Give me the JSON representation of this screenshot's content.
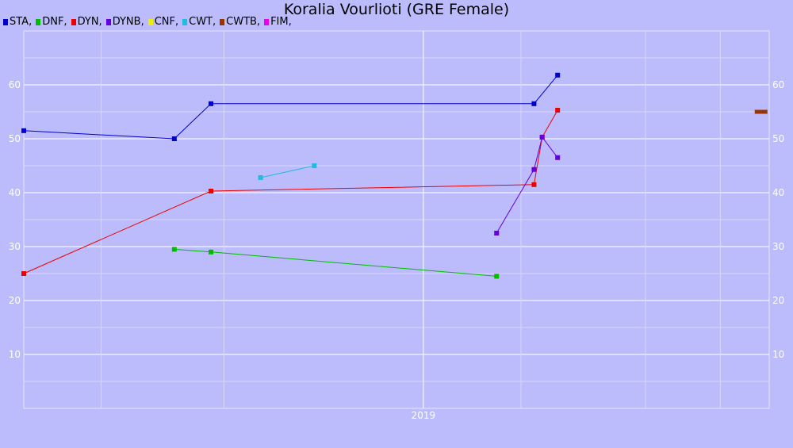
{
  "chart_data": {
    "type": "line",
    "title": "Koralia Vourlioti (GRE Female)",
    "legend_suffix": ",",
    "legend_placement": "top-left",
    "grid": true,
    "ylim": [
      0,
      70
    ],
    "y_ticks": [
      10,
      20,
      30,
      40,
      50,
      60
    ],
    "y_tick_labels": [
      "10",
      "20",
      "30",
      "40",
      "50",
      "60"
    ],
    "xlim": [
      "2017-08-28",
      "2020-03-01"
    ],
    "x_ticks": [
      {
        "value": "2019-01-01",
        "label": "2019"
      }
    ],
    "x_minor_gridlines": [
      "2017-12-01",
      "2018-05-01",
      "2019-01-01",
      "2019-05-01",
      "2019-10-01",
      "2020-01-01"
    ],
    "series": [
      {
        "name": "STA",
        "color": "#0000cc",
        "points": [
          {
            "x": "2017-08-28",
            "y": 51.5
          },
          {
            "x": "2018-03-01",
            "y": 50.0
          },
          {
            "x": "2018-04-15",
            "y": 56.5
          },
          {
            "x": "2019-05-17",
            "y": 56.5
          },
          {
            "x": "2019-06-15",
            "y": 61.8
          }
        ]
      },
      {
        "name": "DNF",
        "color": "#00bb00",
        "points": [
          {
            "x": "2018-03-01",
            "y": 29.5
          },
          {
            "x": "2018-04-15",
            "y": 29.0
          },
          {
            "x": "2019-04-01",
            "y": 24.5
          }
        ]
      },
      {
        "name": "DYN",
        "color": "#ee0000",
        "points": [
          {
            "x": "2017-08-28",
            "y": 25.0
          },
          {
            "x": "2018-04-15",
            "y": 40.3
          },
          {
            "x": "2019-05-17",
            "y": 41.5
          },
          {
            "x": "2019-05-27",
            "y": 50.3
          },
          {
            "x": "2019-06-15",
            "y": 55.3
          }
        ]
      },
      {
        "name": "DYNB",
        "color": "#6600dd",
        "points": [
          {
            "x": "2019-04-01",
            "y": 32.5
          },
          {
            "x": "2019-05-17",
            "y": 44.3
          },
          {
            "x": "2019-05-27",
            "y": 50.3
          },
          {
            "x": "2019-06-15",
            "y": 46.5
          }
        ]
      },
      {
        "name": "CNF",
        "color": "#eeee00",
        "points": []
      },
      {
        "name": "CWT",
        "color": "#22bbdd",
        "points": [
          {
            "x": "2018-06-15",
            "y": 42.8
          },
          {
            "x": "2018-08-20",
            "y": 45.0
          }
        ]
      },
      {
        "name": "CWTB",
        "color": "#993300",
        "points": [
          {
            "x": "2020-02-20",
            "y": 55.0
          }
        ]
      },
      {
        "name": "FIM",
        "color": "#ee00ee",
        "points": []
      }
    ]
  }
}
